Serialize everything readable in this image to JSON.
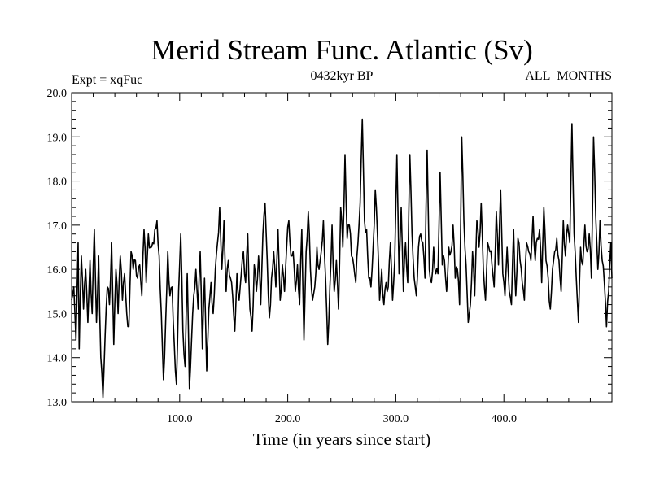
{
  "chart_data": {
    "type": "line",
    "title": "Merid Stream Func. Atlantic (Sv)",
    "subtitle": "0432kyr BP",
    "left_annotation": "Expt = xqFuc",
    "right_annotation": "ALL_MONTHS",
    "xlabel": "Time (in years since start)",
    "ylabel": "",
    "xlim": [
      0,
      500
    ],
    "ylim": [
      13.0,
      20.0
    ],
    "xticks": [
      100,
      200,
      300,
      400
    ],
    "xtick_labels": [
      "100.0",
      "200.0",
      "300.0",
      "400.0"
    ],
    "yticks": [
      13,
      14,
      15,
      16,
      17,
      18,
      19,
      20
    ],
    "ytick_labels": [
      "13.0",
      "14.0",
      "15.0",
      "16.0",
      "17.0",
      "18.0",
      "19.0",
      "20.0"
    ],
    "grid": false,
    "line_color": "#000000",
    "anchors": [
      [
        0,
        15.3
      ],
      [
        2,
        15.6
      ],
      [
        4,
        14.4
      ],
      [
        6,
        16.6
      ],
      [
        7,
        14.2
      ],
      [
        9,
        16.3
      ],
      [
        11,
        15.1
      ],
      [
        13,
        16.0
      ],
      [
        15,
        14.8
      ],
      [
        17,
        16.2
      ],
      [
        19,
        15.0
      ],
      [
        21,
        16.9
      ],
      [
        23,
        14.8
      ],
      [
        25,
        16.3
      ],
      [
        27,
        14.0
      ],
      [
        29,
        13.1
      ],
      [
        31,
        14.5
      ],
      [
        33,
        15.6
      ],
      [
        35,
        15.2
      ],
      [
        37,
        16.6
      ],
      [
        39,
        14.3
      ],
      [
        41,
        16.0
      ],
      [
        43,
        15.0
      ],
      [
        45,
        16.3
      ],
      [
        47,
        15.3
      ],
      [
        49,
        15.9
      ],
      [
        51,
        15.0
      ],
      [
        53,
        14.7
      ],
      [
        55,
        16.4
      ],
      [
        57,
        16.0
      ],
      [
        59,
        16.2
      ],
      [
        61,
        15.8
      ],
      [
        63,
        16.1
      ],
      [
        65,
        15.4
      ],
      [
        67,
        16.9
      ],
      [
        69,
        15.7
      ],
      [
        71,
        16.8
      ],
      [
        73,
        16.5
      ],
      [
        75,
        16.6
      ],
      [
        77,
        16.9
      ],
      [
        79,
        17.1
      ],
      [
        81,
        16.3
      ],
      [
        83,
        15.0
      ],
      [
        85,
        13.5
      ],
      [
        87,
        14.8
      ],
      [
        89,
        16.4
      ],
      [
        91,
        15.4
      ],
      [
        93,
        15.6
      ],
      [
        95,
        14.3
      ],
      [
        97,
        13.4
      ],
      [
        99,
        15.5
      ],
      [
        101,
        16.8
      ],
      [
        103,
        14.6
      ],
      [
        105,
        13.8
      ],
      [
        107,
        15.9
      ],
      [
        109,
        13.3
      ],
      [
        111,
        14.4
      ],
      [
        113,
        15.4
      ],
      [
        115,
        16.0
      ],
      [
        117,
        15.1
      ],
      [
        119,
        16.4
      ],
      [
        121,
        14.2
      ],
      [
        123,
        15.8
      ],
      [
        125,
        13.7
      ],
      [
        127,
        15.1
      ],
      [
        129,
        15.7
      ],
      [
        131,
        15.0
      ],
      [
        133,
        16.0
      ],
      [
        135,
        16.6
      ],
      [
        137,
        17.4
      ],
      [
        139,
        16.0
      ],
      [
        141,
        17.1
      ],
      [
        143,
        15.5
      ],
      [
        145,
        16.2
      ],
      [
        147,
        15.8
      ],
      [
        149,
        15.4
      ],
      [
        151,
        14.6
      ],
      [
        153,
        15.9
      ],
      [
        155,
        15.3
      ],
      [
        157,
        15.9
      ],
      [
        159,
        16.4
      ],
      [
        161,
        15.7
      ],
      [
        163,
        16.8
      ],
      [
        165,
        15.1
      ],
      [
        167,
        14.6
      ],
      [
        169,
        16.1
      ],
      [
        171,
        15.5
      ],
      [
        173,
        16.3
      ],
      [
        175,
        15.2
      ],
      [
        177,
        16.8
      ],
      [
        179,
        17.5
      ],
      [
        181,
        16.2
      ],
      [
        183,
        14.9
      ],
      [
        185,
        15.8
      ],
      [
        187,
        16.4
      ],
      [
        189,
        15.6
      ],
      [
        191,
        16.9
      ],
      [
        193,
        15.3
      ],
      [
        195,
        16.1
      ],
      [
        197,
        15.5
      ],
      [
        199,
        16.5
      ],
      [
        201,
        17.1
      ],
      [
        203,
        16.3
      ],
      [
        205,
        16.4
      ],
      [
        207,
        15.5
      ],
      [
        209,
        16.1
      ],
      [
        211,
        15.2
      ],
      [
        213,
        16.9
      ],
      [
        215,
        14.4
      ],
      [
        217,
        16.4
      ],
      [
        219,
        17.3
      ],
      [
        221,
        16.0
      ],
      [
        223,
        15.3
      ],
      [
        225,
        15.6
      ],
      [
        227,
        16.5
      ],
      [
        229,
        16.0
      ],
      [
        231,
        16.4
      ],
      [
        233,
        17.1
      ],
      [
        235,
        15.8
      ],
      [
        237,
        14.3
      ],
      [
        239,
        15.6
      ],
      [
        241,
        17.0
      ],
      [
        243,
        15.5
      ],
      [
        245,
        16.2
      ],
      [
        247,
        15.1
      ],
      [
        249,
        17.4
      ],
      [
        251,
        16.5
      ],
      [
        253,
        18.6
      ],
      [
        255,
        16.7
      ],
      [
        257,
        17.0
      ],
      [
        259,
        16.3
      ],
      [
        261,
        16.1
      ],
      [
        263,
        15.7
      ],
      [
        265,
        16.6
      ],
      [
        267,
        17.5
      ],
      [
        269,
        19.4
      ],
      [
        271,
        17.1
      ],
      [
        273,
        16.9
      ],
      [
        275,
        15.8
      ],
      [
        277,
        15.6
      ],
      [
        279,
        16.5
      ],
      [
        281,
        17.8
      ],
      [
        283,
        16.8
      ],
      [
        285,
        15.3
      ],
      [
        287,
        16.0
      ],
      [
        289,
        15.2
      ],
      [
        291,
        15.7
      ],
      [
        293,
        15.6
      ],
      [
        295,
        16.6
      ],
      [
        297,
        15.3
      ],
      [
        299,
        16.2
      ],
      [
        301,
        18.6
      ],
      [
        303,
        15.9
      ],
      [
        305,
        17.4
      ],
      [
        307,
        15.5
      ],
      [
        309,
        16.6
      ],
      [
        311,
        15.7
      ],
      [
        313,
        18.6
      ],
      [
        315,
        16.8
      ],
      [
        317,
        15.8
      ],
      [
        319,
        15.4
      ],
      [
        321,
        16.5
      ],
      [
        323,
        16.8
      ],
      [
        325,
        16.6
      ],
      [
        327,
        15.8
      ],
      [
        329,
        18.7
      ],
      [
        331,
        16.0
      ],
      [
        333,
        15.7
      ],
      [
        335,
        16.5
      ],
      [
        337,
        15.9
      ],
      [
        339,
        15.9
      ],
      [
        341,
        18.2
      ],
      [
        343,
        16.1
      ],
      [
        345,
        16.2
      ],
      [
        347,
        15.5
      ],
      [
        349,
        16.5
      ],
      [
        351,
        16.4
      ],
      [
        353,
        17.0
      ],
      [
        355,
        15.8
      ],
      [
        357,
        16.0
      ],
      [
        359,
        15.2
      ],
      [
        361,
        19.0
      ],
      [
        363,
        17.1
      ],
      [
        365,
        16.1
      ],
      [
        367,
        14.8
      ],
      [
        369,
        15.2
      ],
      [
        371,
        16.4
      ],
      [
        373,
        15.4
      ],
      [
        375,
        17.1
      ],
      [
        377,
        16.5
      ],
      [
        379,
        17.5
      ],
      [
        381,
        16.0
      ],
      [
        383,
        15.3
      ],
      [
        385,
        16.6
      ],
      [
        387,
        16.4
      ],
      [
        389,
        16.1
      ],
      [
        391,
        15.6
      ],
      [
        393,
        17.3
      ],
      [
        395,
        16.1
      ],
      [
        397,
        17.8
      ],
      [
        399,
        15.9
      ],
      [
        401,
        15.4
      ],
      [
        403,
        16.5
      ],
      [
        405,
        15.5
      ],
      [
        407,
        15.2
      ],
      [
        409,
        16.9
      ],
      [
        411,
        15.4
      ],
      [
        413,
        16.7
      ],
      [
        415,
        16.2
      ],
      [
        417,
        15.7
      ],
      [
        419,
        15.3
      ],
      [
        421,
        16.6
      ],
      [
        423,
        16.4
      ],
      [
        425,
        16.2
      ],
      [
        427,
        17.2
      ],
      [
        429,
        16.2
      ],
      [
        431,
        16.7
      ],
      [
        433,
        16.9
      ],
      [
        435,
        15.7
      ],
      [
        437,
        17.4
      ],
      [
        439,
        16.2
      ],
      [
        441,
        15.8
      ],
      [
        443,
        15.1
      ],
      [
        445,
        16.0
      ],
      [
        447,
        16.4
      ],
      [
        449,
        16.7
      ],
      [
        451,
        16.2
      ],
      [
        453,
        15.5
      ],
      [
        455,
        17.1
      ],
      [
        457,
        16.3
      ],
      [
        459,
        17.0
      ],
      [
        461,
        16.6
      ],
      [
        463,
        19.3
      ],
      [
        465,
        16.8
      ],
      [
        467,
        15.8
      ],
      [
        469,
        14.8
      ],
      [
        471,
        16.5
      ],
      [
        473,
        16.1
      ],
      [
        475,
        17.0
      ],
      [
        477,
        16.4
      ],
      [
        479,
        16.8
      ],
      [
        481,
        15.8
      ],
      [
        483,
        19.0
      ],
      [
        485,
        17.2
      ],
      [
        487,
        16.0
      ],
      [
        489,
        17.1
      ],
      [
        491,
        16.2
      ],
      [
        493,
        15.7
      ],
      [
        495,
        14.7
      ],
      [
        497,
        15.5
      ],
      [
        499,
        16.6
      ],
      [
        500,
        15.8
      ]
    ]
  }
}
